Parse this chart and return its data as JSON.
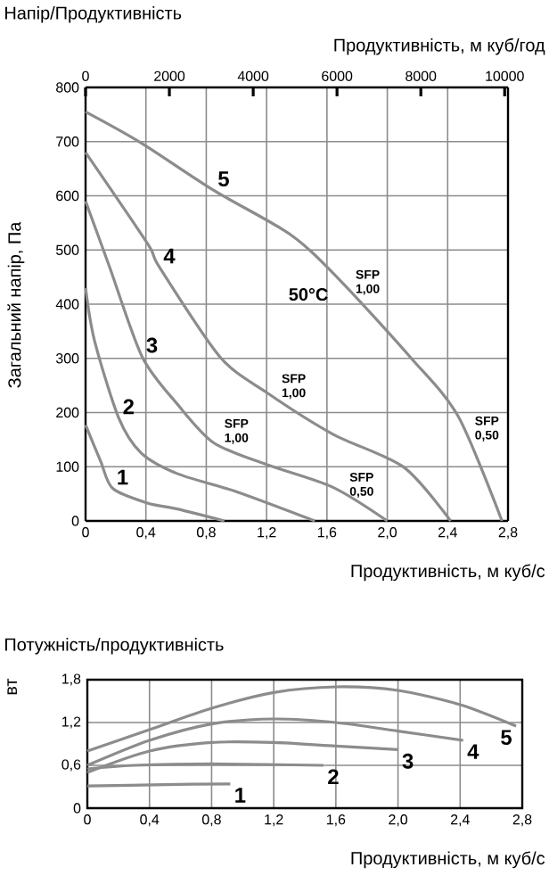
{
  "chart_data": [
    {
      "type": "line",
      "title": "Напір/Продуктивність",
      "x2label": "Продуктивність, м куб/год",
      "xlabel": "Продуктивність, м куб/с",
      "ylabel": "Загальний напір, Па",
      "xlim": [
        0,
        2.8
      ],
      "xticks": [
        0,
        {
          "value": 0.4,
          "label": "0,4"
        },
        {
          "value": 0.8,
          "label": "0,8"
        },
        {
          "value": 1.2,
          "label": "1,2"
        },
        {
          "value": 1.6,
          "label": "1,6"
        },
        {
          "value": 2.0,
          "label": "2,0"
        },
        {
          "value": 2.4,
          "label": "2,4"
        },
        {
          "value": 2.8,
          "label": "2,8"
        }
      ],
      "x2lim": [
        0,
        10080
      ],
      "x2ticks": [
        0,
        2000,
        4000,
        6000,
        8000,
        10000
      ],
      "ylim": [
        0,
        800
      ],
      "yticks": [
        0,
        100,
        200,
        300,
        400,
        500,
        600,
        700,
        800
      ],
      "grid": true,
      "legend": false,
      "marker": "none",
      "line_style": "solid",
      "series": [
        {
          "name": "1",
          "color": "#8c8c8c",
          "x": [
            0,
            0.1,
            0.18,
            0.41,
            0.61,
            0.92
          ],
          "values": [
            177,
            110,
            60,
            33,
            22,
            0
          ]
        },
        {
          "name": "2",
          "color": "#8c8c8c",
          "x": [
            0,
            0.06,
            0.22,
            0.37,
            0.61,
            1.0,
            1.52
          ],
          "values": [
            430,
            332,
            190,
            125,
            87,
            54,
            0
          ]
        },
        {
          "name": "3",
          "color": "#8c8c8c",
          "x": [
            0,
            0.16,
            0.375,
            0.61,
            0.85,
            1.2,
            1.64,
            2.0
          ],
          "values": [
            590,
            468,
            303,
            215,
            144,
            104,
            62,
            0
          ]
        },
        {
          "name": "4",
          "color": "#8c8c8c",
          "x": [
            0,
            0.41,
            0.49,
            0.89,
            1.2,
            1.64,
            2.11,
            2.42
          ],
          "values": [
            680,
            512,
            468,
            303,
            237,
            160,
            99,
            0
          ]
        },
        {
          "name": "5",
          "color": "#8c8c8c",
          "x": [
            0,
            0.36,
            0.85,
            1.36,
            1.68,
            2.15,
            2.47,
            2.76
          ],
          "values": [
            755,
            699,
            610,
            528,
            446,
            303,
            193,
            0
          ]
        }
      ],
      "annotations": [
        "50°C",
        "SFP 1,00",
        "SFP 1,00",
        "SFP 1,00",
        "SFP 0,50",
        "SFP 0,50"
      ]
    },
    {
      "type": "line",
      "title": "Потужність/продуктивність",
      "xlabel": "Продуктивність, м куб/с",
      "ylabel": "вт",
      "xlim": [
        0,
        2.8
      ],
      "xticks": [
        0,
        {
          "value": 0.4,
          "label": "0,4"
        },
        {
          "value": 0.8,
          "label": "0,8"
        },
        {
          "value": 1.2,
          "label": "1,2"
        },
        {
          "value": 1.6,
          "label": "1,6"
        },
        {
          "value": 2.0,
          "label": "2,0"
        },
        {
          "value": 2.4,
          "label": "2,4"
        },
        {
          "value": 2.8,
          "label": "2,8"
        }
      ],
      "ylim": [
        0,
        1.8
      ],
      "yticks": [
        0,
        {
          "value": 0.6,
          "label": "0,6"
        },
        {
          "value": 1.2,
          "label": "1,2"
        },
        {
          "value": 1.8,
          "label": "1,8"
        }
      ],
      "grid": true,
      "legend": false,
      "marker": "none",
      "line_style": "solid",
      "series": [
        {
          "name": "1",
          "color": "#8c8c8c",
          "x": [
            0,
            0.5,
            0.92
          ],
          "values": [
            0.31,
            0.33,
            0.34
          ]
        },
        {
          "name": "2",
          "color": "#8c8c8c",
          "x": [
            0,
            0.3,
            0.8,
            1.52
          ],
          "values": [
            0.55,
            0.6,
            0.62,
            0.6
          ]
        },
        {
          "name": "3",
          "color": "#8c8c8c",
          "x": [
            0,
            0.4,
            0.8,
            1.2,
            1.6,
            2.0
          ],
          "values": [
            0.5,
            0.8,
            0.92,
            0.92,
            0.87,
            0.82
          ]
        },
        {
          "name": "4",
          "color": "#8c8c8c",
          "x": [
            0,
            0.4,
            0.8,
            1.2,
            1.6,
            2.0,
            2.42
          ],
          "values": [
            0.6,
            0.95,
            1.18,
            1.25,
            1.2,
            1.08,
            0.95
          ]
        },
        {
          "name": "5",
          "color": "#8c8c8c",
          "x": [
            0,
            0.4,
            0.8,
            1.2,
            1.6,
            2.0,
            2.4,
            2.76
          ],
          "values": [
            0.8,
            1.1,
            1.4,
            1.62,
            1.7,
            1.65,
            1.45,
            1.15
          ]
        }
      ]
    }
  ]
}
